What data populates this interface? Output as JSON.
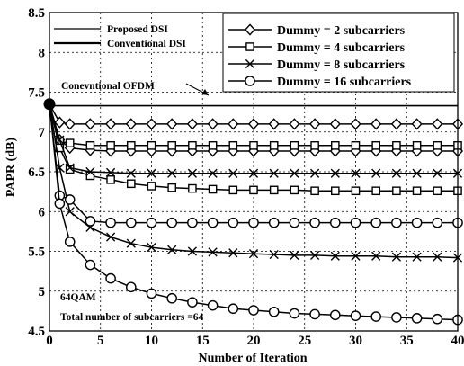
{
  "chart_data": {
    "type": "line",
    "xlabel": "Number of Iteration",
    "ylabel": "PAPR (dB)",
    "xlim": [
      0,
      40
    ],
    "ylim": [
      4.5,
      8.5
    ],
    "xticks": [
      0,
      5,
      10,
      15,
      20,
      25,
      30,
      35,
      40
    ],
    "yticks": [
      4.5,
      5,
      5.5,
      6,
      6.5,
      7,
      7.5,
      8,
      8.5
    ],
    "xtick_labels": [
      "0",
      "5",
      "10",
      "15",
      "20",
      "25",
      "30",
      "35",
      "40"
    ],
    "ytick_labels": [
      "4.5",
      "5",
      "5.5",
      "6",
      "6.5",
      "7",
      "7.5",
      "8",
      "8.5"
    ],
    "grid": true,
    "legend_method": [
      {
        "label": "Proposed DSI",
        "style": "thin"
      },
      {
        "label": "Conventional DSI",
        "style": "thick"
      }
    ],
    "legend_markers": [
      {
        "label": "Dummy = 2 subcarriers",
        "marker": "diamond"
      },
      {
        "label": "Dummy = 4 subcarriers",
        "marker": "square"
      },
      {
        "label": "Dummy = 8 subcarriers",
        "marker": "x"
      },
      {
        "label": "Dummy = 16 subcarriers",
        "marker": "circle"
      }
    ],
    "annotations": {
      "ofdm_label": "Conevntional OFDM",
      "note_line1": "64QAM",
      "note_line2": "Total number of subcarriers =64"
    },
    "reference_line": {
      "y": 7.33
    },
    "series": [
      {
        "marker": "diamond",
        "x": [
          0,
          1,
          2,
          4,
          6,
          8,
          10,
          12,
          14,
          16,
          18,
          20,
          22,
          24,
          26,
          28,
          30,
          32,
          34,
          36,
          38,
          40
        ],
        "y": [
          7.35,
          6.9,
          6.8,
          6.77,
          6.76,
          6.76,
          6.76,
          6.76,
          6.76,
          6.76,
          6.76,
          6.76,
          6.76,
          6.76,
          6.76,
          6.76,
          6.76,
          6.76,
          6.76,
          6.76,
          6.76,
          6.76
        ]
      },
      {
        "marker": "diamond",
        "x": [
          0,
          1,
          2,
          4,
          6,
          8,
          10,
          12,
          14,
          16,
          18,
          20,
          22,
          24,
          26,
          28,
          30,
          32,
          34,
          36,
          38,
          40
        ],
        "y": [
          7.35,
          7.12,
          7.1,
          7.1,
          7.1,
          7.1,
          7.1,
          7.1,
          7.1,
          7.1,
          7.1,
          7.1,
          7.1,
          7.1,
          7.1,
          7.1,
          7.1,
          7.1,
          7.1,
          7.1,
          7.1,
          7.1
        ]
      },
      {
        "marker": "square",
        "x": [
          0,
          1,
          2,
          4,
          6,
          8,
          10,
          12,
          14,
          16,
          18,
          20,
          22,
          24,
          26,
          28,
          30,
          32,
          34,
          36,
          38,
          40
        ],
        "y": [
          7.35,
          6.88,
          6.86,
          6.83,
          6.83,
          6.83,
          6.83,
          6.83,
          6.83,
          6.83,
          6.83,
          6.83,
          6.83,
          6.83,
          6.83,
          6.83,
          6.83,
          6.83,
          6.83,
          6.83,
          6.83,
          6.83
        ]
      },
      {
        "marker": "square",
        "x": [
          0,
          1,
          2,
          4,
          6,
          8,
          10,
          12,
          14,
          16,
          18,
          20,
          22,
          24,
          26,
          28,
          30,
          32,
          34,
          36,
          38,
          40
        ],
        "y": [
          7.35,
          6.8,
          6.53,
          6.45,
          6.4,
          6.35,
          6.32,
          6.3,
          6.29,
          6.28,
          6.27,
          6.27,
          6.27,
          6.27,
          6.26,
          6.26,
          6.26,
          6.26,
          6.26,
          6.26,
          6.26,
          6.26
        ]
      },
      {
        "marker": "x",
        "x": [
          0,
          1,
          2,
          4,
          6,
          8,
          10,
          12,
          14,
          16,
          18,
          20,
          22,
          24,
          26,
          28,
          30,
          32,
          34,
          36,
          38,
          40
        ],
        "y": [
          7.35,
          6.9,
          6.55,
          6.5,
          6.49,
          6.48,
          6.48,
          6.48,
          6.48,
          6.48,
          6.48,
          6.48,
          6.48,
          6.48,
          6.48,
          6.48,
          6.48,
          6.48,
          6.48,
          6.48,
          6.48,
          6.48
        ]
      },
      {
        "marker": "x",
        "x": [
          0,
          1,
          2,
          4,
          6,
          8,
          10,
          12,
          14,
          16,
          18,
          20,
          22,
          24,
          26,
          28,
          30,
          32,
          34,
          36,
          38,
          40
        ],
        "y": [
          7.35,
          6.55,
          6.0,
          5.8,
          5.68,
          5.6,
          5.55,
          5.52,
          5.5,
          5.49,
          5.48,
          5.47,
          5.46,
          5.45,
          5.45,
          5.44,
          5.44,
          5.44,
          5.43,
          5.43,
          5.43,
          5.42
        ]
      },
      {
        "marker": "circle",
        "x": [
          0,
          1,
          2,
          4,
          6,
          8,
          10,
          12,
          14,
          16,
          18,
          20,
          22,
          24,
          26,
          28,
          30,
          32,
          34,
          36,
          38,
          40
        ],
        "y": [
          7.35,
          6.2,
          6.15,
          5.88,
          5.86,
          5.86,
          5.86,
          5.86,
          5.86,
          5.86,
          5.86,
          5.86,
          5.86,
          5.86,
          5.86,
          5.86,
          5.86,
          5.86,
          5.86,
          5.86,
          5.86,
          5.86
        ]
      },
      {
        "marker": "circle",
        "x": [
          0,
          1,
          2,
          4,
          6,
          8,
          10,
          12,
          14,
          16,
          18,
          20,
          22,
          24,
          26,
          28,
          30,
          32,
          34,
          36,
          38,
          40
        ],
        "y": [
          7.35,
          6.1,
          5.62,
          5.33,
          5.16,
          5.05,
          4.97,
          4.91,
          4.86,
          4.82,
          4.78,
          4.76,
          4.74,
          4.72,
          4.71,
          4.7,
          4.69,
          4.68,
          4.67,
          4.66,
          4.65,
          4.64
        ]
      }
    ]
  }
}
